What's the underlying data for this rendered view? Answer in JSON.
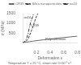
{
  "chart_data": {
    "type": "line",
    "xlabel": "Deformation ε",
    "ylabel": "σ (MPa)",
    "footnote": "Temperature T = 25 °C, strain rate 5×10⁻³ s⁻¹",
    "xlim": [
      0,
      0.8
    ],
    "ylim": [
      0,
      1500
    ],
    "xticks": [
      0.2,
      0.4,
      0.6,
      0.8
    ],
    "yticks": [
      500,
      1000,
      1500
    ],
    "grid": false,
    "legend": "upper right",
    "series": [
      {
        "name": "CR39",
        "color": "#666666",
        "line_style": "solid",
        "x": [
          0.0,
          0.05,
          0.1,
          0.15,
          0.2,
          0.3,
          0.4,
          0.5,
          0.6,
          0.7,
          0.8
        ],
        "values": [
          0,
          30,
          55,
          80,
          105,
          150,
          190,
          230,
          265,
          300,
          335
        ]
      },
      {
        "name": "Silica nanoparticules",
        "color": "#333333",
        "line_style": "dashed",
        "x": [
          0.0,
          0.02,
          0.05,
          0.08,
          0.1,
          0.13,
          0.16,
          0.18,
          0.2,
          0.22
        ],
        "values": [
          0,
          20,
          80,
          200,
          380,
          650,
          950,
          1150,
          1350,
          1500
        ]
      },
      {
        "name": "oa10",
        "color": "#333333",
        "line_style": "dashdot",
        "x": [
          0.0,
          0.02,
          0.04,
          0.06,
          0.08,
          0.1,
          0.12,
          0.14,
          0.16
        ],
        "values": [
          0,
          30,
          100,
          250,
          500,
          850,
          1100,
          1300,
          1500
        ]
      }
    ],
    "annotations": [
      {
        "text": "Polycarbonate",
        "x": 0.33,
        "y": 115
      },
      {
        "text": "CR39",
        "x": 0.115,
        "y": 820
      },
      {
        "text": "oa10",
        "x": 0.015,
        "y": 1250
      }
    ]
  }
}
